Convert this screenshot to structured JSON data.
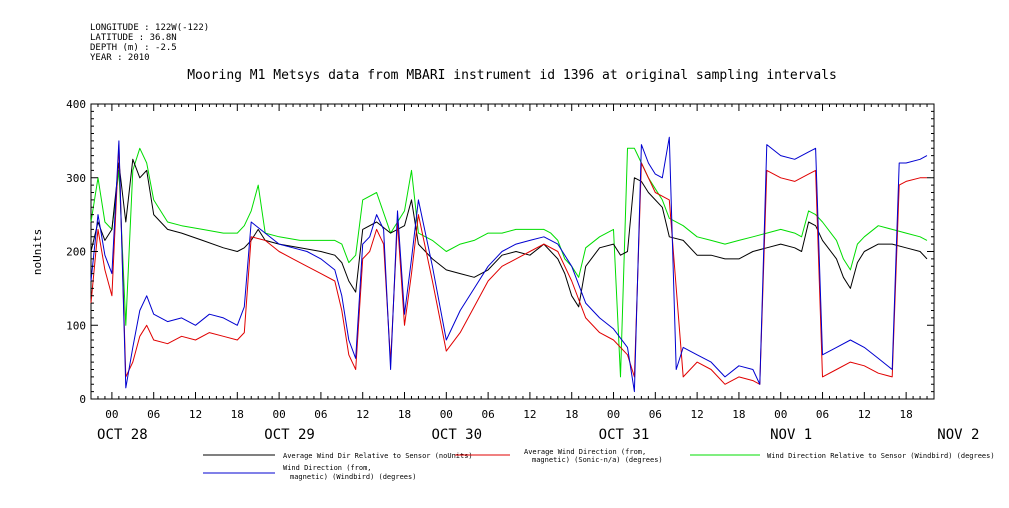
{
  "meta": {
    "longitude": "LONGITUDE : 122W(-122)",
    "latitude": "LATITUDE : 36.8N",
    "depth": "DEPTH (m) : -2.5",
    "year": "YEAR : 2010"
  },
  "chart_data": {
    "type": "line",
    "title": "Mooring M1 Metsys data from MBARI instrument id 1396 at original sampling intervals",
    "ylabel": "noUnits",
    "xlabel": "",
    "ylim": [
      0,
      400
    ],
    "y_ticks": [
      0,
      100,
      200,
      300,
      400
    ],
    "xlim_hours": [
      -3,
      118
    ],
    "hour_tick_labels": [
      "00",
      "06",
      "12",
      "18"
    ],
    "day_labels": [
      "OCT 28",
      "OCT 29",
      "OCT 30",
      "OCT 31",
      "NOV 1",
      "NOV 2"
    ],
    "grid": false,
    "legend_position": "bottom",
    "series": [
      {
        "name": "Average Wind Dir Relative to Sensor (noUnits)",
        "color": "#000000",
        "points": [
          [
            -3,
            200
          ],
          [
            -2,
            240
          ],
          [
            -1,
            215
          ],
          [
            0,
            230
          ],
          [
            1,
            320
          ],
          [
            2,
            240
          ],
          [
            3,
            325
          ],
          [
            4,
            300
          ],
          [
            5,
            310
          ],
          [
            6,
            250
          ],
          [
            8,
            230
          ],
          [
            10,
            225
          ],
          [
            13,
            215
          ],
          [
            16,
            205
          ],
          [
            18,
            200
          ],
          [
            19,
            205
          ],
          [
            20,
            215
          ],
          [
            21,
            230
          ],
          [
            22,
            215
          ],
          [
            24,
            210
          ],
          [
            27,
            205
          ],
          [
            30,
            200
          ],
          [
            32,
            195
          ],
          [
            33,
            185
          ],
          [
            34,
            160
          ],
          [
            35,
            145
          ],
          [
            36,
            230
          ],
          [
            38,
            240
          ],
          [
            40,
            225
          ],
          [
            42,
            235
          ],
          [
            43,
            270
          ],
          [
            44,
            210
          ],
          [
            46,
            190
          ],
          [
            48,
            175
          ],
          [
            50,
            170
          ],
          [
            52,
            165
          ],
          [
            54,
            175
          ],
          [
            56,
            195
          ],
          [
            58,
            200
          ],
          [
            60,
            195
          ],
          [
            62,
            210
          ],
          [
            63,
            200
          ],
          [
            64,
            190
          ],
          [
            65,
            170
          ],
          [
            66,
            140
          ],
          [
            67,
            125
          ],
          [
            68,
            180
          ],
          [
            70,
            205
          ],
          [
            72,
            210
          ],
          [
            73,
            195
          ],
          [
            74,
            200
          ],
          [
            75,
            300
          ],
          [
            76,
            295
          ],
          [
            77,
            280
          ],
          [
            78,
            270
          ],
          [
            79,
            260
          ],
          [
            80,
            220
          ],
          [
            82,
            215
          ],
          [
            84,
            195
          ],
          [
            86,
            195
          ],
          [
            88,
            190
          ],
          [
            90,
            190
          ],
          [
            92,
            200
          ],
          [
            94,
            205
          ],
          [
            96,
            210
          ],
          [
            98,
            205
          ],
          [
            99,
            200
          ],
          [
            100,
            240
          ],
          [
            101,
            235
          ],
          [
            102,
            215
          ],
          [
            104,
            190
          ],
          [
            105,
            165
          ],
          [
            106,
            150
          ],
          [
            107,
            185
          ],
          [
            108,
            200
          ],
          [
            110,
            210
          ],
          [
            112,
            210
          ],
          [
            114,
            205
          ],
          [
            116,
            200
          ],
          [
            117,
            190
          ]
        ]
      },
      {
        "name": "Average Wind Direction (from, magnetic) (Sonic-n/a) (degrees)",
        "color": "#e00000",
        "points": [
          [
            -3,
            130
          ],
          [
            -2,
            230
          ],
          [
            -1,
            175
          ],
          [
            0,
            140
          ],
          [
            1,
            345
          ],
          [
            2,
            30
          ],
          [
            3,
            50
          ],
          [
            4,
            85
          ],
          [
            5,
            100
          ],
          [
            6,
            80
          ],
          [
            8,
            75
          ],
          [
            10,
            85
          ],
          [
            12,
            80
          ],
          [
            14,
            90
          ],
          [
            16,
            85
          ],
          [
            18,
            80
          ],
          [
            19,
            90
          ],
          [
            20,
            220
          ],
          [
            22,
            215
          ],
          [
            24,
            200
          ],
          [
            26,
            190
          ],
          [
            28,
            180
          ],
          [
            30,
            170
          ],
          [
            32,
            160
          ],
          [
            33,
            120
          ],
          [
            34,
            60
          ],
          [
            35,
            40
          ],
          [
            36,
            190
          ],
          [
            37,
            200
          ],
          [
            38,
            230
          ],
          [
            39,
            210
          ],
          [
            40,
            50
          ],
          [
            41,
            240
          ],
          [
            42,
            100
          ],
          [
            43,
            170
          ],
          [
            44,
            250
          ],
          [
            46,
            160
          ],
          [
            48,
            65
          ],
          [
            50,
            90
          ],
          [
            52,
            125
          ],
          [
            54,
            160
          ],
          [
            56,
            180
          ],
          [
            58,
            190
          ],
          [
            60,
            200
          ],
          [
            62,
            210
          ],
          [
            64,
            200
          ],
          [
            66,
            160
          ],
          [
            68,
            110
          ],
          [
            70,
            90
          ],
          [
            72,
            80
          ],
          [
            74,
            60
          ],
          [
            75,
            30
          ],
          [
            76,
            320
          ],
          [
            77,
            300
          ],
          [
            78,
            280
          ],
          [
            79,
            275
          ],
          [
            80,
            270
          ],
          [
            82,
            30
          ],
          [
            84,
            50
          ],
          [
            86,
            40
          ],
          [
            88,
            20
          ],
          [
            90,
            30
          ],
          [
            92,
            25
          ],
          [
            93,
            20
          ],
          [
            94,
            310
          ],
          [
            96,
            300
          ],
          [
            98,
            295
          ],
          [
            100,
            305
          ],
          [
            101,
            310
          ],
          [
            102,
            30
          ],
          [
            104,
            40
          ],
          [
            106,
            50
          ],
          [
            108,
            45
          ],
          [
            110,
            35
          ],
          [
            112,
            30
          ],
          [
            113,
            290
          ],
          [
            114,
            295
          ],
          [
            116,
            300
          ],
          [
            117,
            300
          ]
        ]
      },
      {
        "name": "Wind Direction Relative to Sensor (Windbird) (degrees)",
        "color": "#00dd00",
        "points": [
          [
            -3,
            240
          ],
          [
            -2,
            300
          ],
          [
            -1,
            240
          ],
          [
            0,
            230
          ],
          [
            1,
            310
          ],
          [
            2,
            100
          ],
          [
            3,
            310
          ],
          [
            4,
            340
          ],
          [
            5,
            320
          ],
          [
            6,
            270
          ],
          [
            8,
            240
          ],
          [
            10,
            235
          ],
          [
            13,
            230
          ],
          [
            16,
            225
          ],
          [
            18,
            225
          ],
          [
            19,
            235
          ],
          [
            20,
            255
          ],
          [
            21,
            290
          ],
          [
            22,
            225
          ],
          [
            24,
            220
          ],
          [
            27,
            215
          ],
          [
            30,
            215
          ],
          [
            32,
            215
          ],
          [
            33,
            210
          ],
          [
            34,
            185
          ],
          [
            35,
            195
          ],
          [
            36,
            270
          ],
          [
            38,
            280
          ],
          [
            40,
            225
          ],
          [
            42,
            255
          ],
          [
            43,
            310
          ],
          [
            44,
            225
          ],
          [
            46,
            215
          ],
          [
            48,
            200
          ],
          [
            50,
            210
          ],
          [
            52,
            215
          ],
          [
            54,
            225
          ],
          [
            56,
            225
          ],
          [
            58,
            230
          ],
          [
            60,
            230
          ],
          [
            62,
            230
          ],
          [
            63,
            225
          ],
          [
            64,
            215
          ],
          [
            65,
            190
          ],
          [
            66,
            180
          ],
          [
            67,
            165
          ],
          [
            68,
            205
          ],
          [
            70,
            220
          ],
          [
            72,
            230
          ],
          [
            73,
            30
          ],
          [
            74,
            340
          ],
          [
            75,
            340
          ],
          [
            76,
            320
          ],
          [
            77,
            300
          ],
          [
            78,
            285
          ],
          [
            79,
            270
          ],
          [
            80,
            245
          ],
          [
            82,
            235
          ],
          [
            84,
            220
          ],
          [
            86,
            215
          ],
          [
            88,
            210
          ],
          [
            90,
            215
          ],
          [
            92,
            220
          ],
          [
            94,
            225
          ],
          [
            96,
            230
          ],
          [
            98,
            225
          ],
          [
            99,
            220
          ],
          [
            100,
            255
          ],
          [
            101,
            250
          ],
          [
            102,
            240
          ],
          [
            104,
            215
          ],
          [
            105,
            190
          ],
          [
            106,
            175
          ],
          [
            107,
            210
          ],
          [
            108,
            220
          ],
          [
            110,
            235
          ],
          [
            112,
            230
          ],
          [
            114,
            225
          ],
          [
            116,
            220
          ],
          [
            117,
            215
          ]
        ]
      },
      {
        "name": "Wind Direction (from, magnetic) (Windbird) (degrees)",
        "color": "#0000d0",
        "points": [
          [
            -3,
            160
          ],
          [
            -2,
            250
          ],
          [
            -1,
            195
          ],
          [
            0,
            170
          ],
          [
            1,
            350
          ],
          [
            2,
            15
          ],
          [
            3,
            70
          ],
          [
            4,
            120
          ],
          [
            5,
            140
          ],
          [
            6,
            115
          ],
          [
            8,
            105
          ],
          [
            10,
            110
          ],
          [
            12,
            100
          ],
          [
            14,
            115
          ],
          [
            16,
            110
          ],
          [
            18,
            100
          ],
          [
            19,
            125
          ],
          [
            20,
            240
          ],
          [
            22,
            225
          ],
          [
            24,
            210
          ],
          [
            26,
            205
          ],
          [
            28,
            200
          ],
          [
            30,
            190
          ],
          [
            32,
            175
          ],
          [
            33,
            140
          ],
          [
            34,
            80
          ],
          [
            35,
            55
          ],
          [
            36,
            210
          ],
          [
            37,
            220
          ],
          [
            38,
            250
          ],
          [
            39,
            230
          ],
          [
            40,
            40
          ],
          [
            41,
            255
          ],
          [
            42,
            115
          ],
          [
            43,
            190
          ],
          [
            44,
            270
          ],
          [
            46,
            180
          ],
          [
            48,
            80
          ],
          [
            50,
            120
          ],
          [
            52,
            150
          ],
          [
            54,
            180
          ],
          [
            56,
            200
          ],
          [
            58,
            210
          ],
          [
            60,
            215
          ],
          [
            62,
            220
          ],
          [
            64,
            210
          ],
          [
            66,
            180
          ],
          [
            68,
            130
          ],
          [
            70,
            110
          ],
          [
            72,
            95
          ],
          [
            74,
            70
          ],
          [
            75,
            10
          ],
          [
            76,
            345
          ],
          [
            77,
            320
          ],
          [
            78,
            305
          ],
          [
            79,
            300
          ],
          [
            80,
            355
          ],
          [
            81,
            40
          ],
          [
            82,
            70
          ],
          [
            84,
            60
          ],
          [
            86,
            50
          ],
          [
            88,
            30
          ],
          [
            90,
            45
          ],
          [
            92,
            40
          ],
          [
            93,
            20
          ],
          [
            94,
            345
          ],
          [
            96,
            330
          ],
          [
            98,
            325
          ],
          [
            100,
            335
          ],
          [
            101,
            340
          ],
          [
            102,
            60
          ],
          [
            104,
            70
          ],
          [
            106,
            80
          ],
          [
            108,
            70
          ],
          [
            110,
            55
          ],
          [
            112,
            40
          ],
          [
            113,
            320
          ],
          [
            114,
            320
          ],
          [
            116,
            325
          ],
          [
            117,
            330
          ]
        ]
      }
    ]
  }
}
